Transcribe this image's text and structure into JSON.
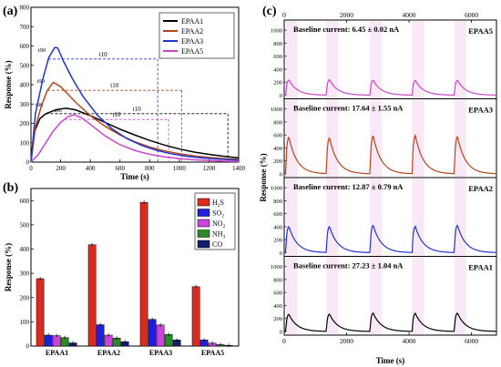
{
  "figure": {
    "panel_a_letter": "(a)",
    "panel_b_letter": "(b)",
    "panel_c_letter": "(c)"
  },
  "chart_data": [
    {
      "type": "line",
      "panel": "(a)",
      "xlabel": "Time (s)",
      "ylabel": "Response (%)",
      "xlim": [
        0,
        1400
      ],
      "ylim": [
        0,
        800
      ],
      "xticks": [
        0,
        200,
        400,
        600,
        800,
        1000,
        1200,
        1400
      ],
      "yticks": [
        0,
        100,
        200,
        300,
        400,
        500,
        600,
        700,
        800
      ],
      "legend_position": "top-right",
      "series": [
        {
          "name": "EPAA1",
          "color": "#000000",
          "x": [
            0,
            20,
            60,
            100,
            150,
            200,
            240,
            300,
            400,
            500,
            600,
            700,
            800,
            900,
            1000,
            1100,
            1200,
            1300,
            1400
          ],
          "y": [
            0,
            150,
            225,
            250,
            265,
            275,
            278,
            270,
            240,
            205,
            170,
            140,
            112,
            88,
            68,
            52,
            40,
            30,
            22
          ]
        },
        {
          "name": "EPAA2",
          "color": "#b5451b",
          "x": [
            0,
            30,
            70,
            110,
            150,
            200,
            250,
            300,
            400,
            500,
            600,
            700,
            800,
            900,
            1000,
            1100,
            1200,
            1300,
            1400
          ],
          "y": [
            0,
            180,
            290,
            370,
            412,
            390,
            350,
            310,
            240,
            185,
            140,
            105,
            78,
            58,
            43,
            32,
            24,
            18,
            14
          ]
        },
        {
          "name": "EPAA3",
          "color": "#1f35d1",
          "x": [
            0,
            30,
            80,
            120,
            160,
            180,
            220,
            280,
            350,
            450,
            550,
            650,
            750,
            850,
            950,
            1050,
            1150,
            1250,
            1400
          ],
          "y": [
            0,
            250,
            430,
            540,
            592,
            590,
            520,
            430,
            340,
            240,
            170,
            120,
            85,
            60,
            42,
            30,
            22,
            16,
            10
          ]
        },
        {
          "name": "EPAA5",
          "color": "#cc44cc",
          "x": [
            0,
            50,
            100,
            150,
            200,
            250,
            290,
            340,
            400,
            500,
            600,
            700,
            800,
            900,
            1000,
            1100,
            1200,
            1300,
            1400
          ],
          "y": [
            0,
            40,
            100,
            160,
            205,
            235,
            245,
            230,
            195,
            135,
            90,
            60,
            40,
            27,
            18,
            12,
            8,
            5,
            3
          ]
        }
      ],
      "annotations": [
        "t90",
        "t10"
      ]
    },
    {
      "type": "bar",
      "panel": "(b)",
      "xlabel": "",
      "ylabel": "Response (%)",
      "ylim": [
        0,
        650
      ],
      "yticks": [
        0,
        100,
        200,
        300,
        400,
        500,
        600
      ],
      "categories": [
        "EPAA1",
        "EPAA2",
        "EPAA3",
        "EPAA5"
      ],
      "legend_position": "top-right",
      "series": [
        {
          "name": "H2S",
          "legend_base": "H",
          "legend_sub": "2",
          "legend_tail": "S",
          "color": "#dd2a1f",
          "values": [
            278,
            418,
            593,
            245
          ]
        },
        {
          "name": "SO2",
          "legend_base": "SO",
          "legend_sub": "2",
          "legend_tail": "",
          "color": "#1f1fdd",
          "values": [
            45,
            88,
            110,
            25
          ]
        },
        {
          "name": "NO2",
          "legend_base": "NO",
          "legend_sub": "2",
          "legend_tail": "",
          "color": "#cc44dd",
          "values": [
            43,
            45,
            87,
            12
          ]
        },
        {
          "name": "NH3",
          "legend_base": "NH",
          "legend_sub": "3",
          "legend_tail": "",
          "color": "#2a8a2a",
          "values": [
            35,
            33,
            48,
            6
          ]
        },
        {
          "name": "CO",
          "legend_base": "CO",
          "legend_sub": "",
          "legend_tail": "",
          "color": "#0f1f6e",
          "values": [
            13,
            18,
            25,
            3
          ]
        }
      ]
    },
    {
      "type": "line",
      "panel": "(c)",
      "xlabel": "Time (s)",
      "ylabel": "Response (%)",
      "xlim": [
        0,
        6800
      ],
      "xticks": [
        0,
        2000,
        4000,
        6000
      ],
      "ylim": [
        0,
        1100
      ],
      "yticks": [
        0,
        200,
        400,
        600,
        800,
        1000
      ],
      "pulse_starts": [
        50,
        1350,
        2750,
        4100,
        5450
      ],
      "subplots": [
        {
          "series_name": "EPAA5",
          "baseline": "Baseline current: 6.45 ± 0.02 nA",
          "color": "#cc44cc",
          "peaks": [
            245,
            250,
            240,
            235,
            240
          ]
        },
        {
          "series_name": "EPAA3",
          "baseline": "Baseline current: 17.64 ± 1.55 nA",
          "color": "#b5451b",
          "peaks": [
            590,
            580,
            610,
            615,
            600
          ]
        },
        {
          "series_name": "EPAA2",
          "baseline": "Baseline current: 12.87 ± 0.79 nA",
          "color": "#1f35d1",
          "peaks": [
            420,
            420,
            440,
            420,
            440
          ]
        },
        {
          "series_name": "EPAA1",
          "baseline": "Baseline current: 27.23 ± 1.04 nA",
          "color": "#000000",
          "peaks": [
            275,
            280,
            295,
            290,
            295
          ]
        }
      ]
    }
  ]
}
